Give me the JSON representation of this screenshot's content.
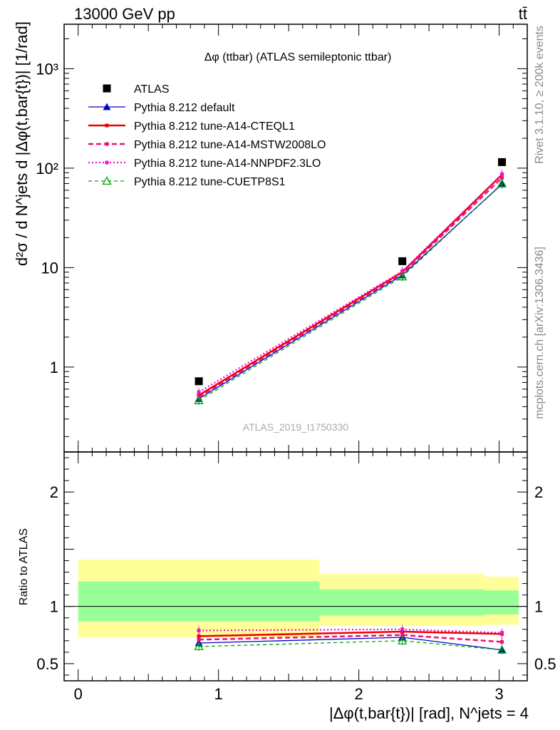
{
  "header": {
    "left": "13000 GeV pp",
    "right": "tt̄"
  },
  "side_labels": {
    "rivet": "Rivet 3.1.10, ≥ 200k events",
    "mcplots": "mcplots.cern.ch [arXiv:1306.3436]"
  },
  "chart_data": [
    {
      "type": "line",
      "title": "Δφ (ttbar) (ATLAS semileptonic ttbar)",
      "reference": "ATLAS_2019_I1750330",
      "ylabel": "d²σ / d N^jets d |Δφ(t,bar{t})| [1/rad]",
      "yscale": "log",
      "ylim": [
        0.14,
        2800
      ],
      "xlim": [
        -0.1,
        3.2
      ],
      "y_ticks": [
        {
          "value": 1,
          "label": "1"
        },
        {
          "value": 10,
          "label": "10"
        },
        {
          "value": 100,
          "label": "10²"
        },
        {
          "value": 1000,
          "label": "10³"
        }
      ],
      "x": [
        0.86,
        2.31,
        3.02
      ],
      "series": [
        {
          "name": "ATLAS",
          "color": "#000000",
          "style": "marker",
          "values": [
            0.72,
            11.6,
            115
          ]
        },
        {
          "name": "Pythia 8.212 default",
          "color": "#0000cc",
          "style": "solid-thin-tri",
          "values": [
            0.48,
            8.4,
            69
          ]
        },
        {
          "name": "Pythia 8.212 tune-A14-CTEQL1",
          "color": "#ee0000",
          "style": "solid-thick",
          "values": [
            0.52,
            9.0,
            86
          ]
        },
        {
          "name": "Pythia 8.212 tune-A14-MSTW2008LO",
          "color": "#ee1177",
          "style": "dashed-thick",
          "values": [
            0.5,
            8.7,
            80
          ]
        },
        {
          "name": "Pythia 8.212 tune-A14-NNPDF2.3LO",
          "color": "#ee11cc",
          "style": "dotted",
          "values": [
            0.56,
            9.2,
            87
          ]
        },
        {
          "name": "Pythia 8.212 tune-CUETP8S1",
          "color": "#00aa00",
          "style": "dashed-thin-opentri",
          "values": [
            0.46,
            8.1,
            70
          ]
        }
      ]
    },
    {
      "type": "line",
      "title": "",
      "ylabel": "Ratio to ATLAS",
      "xlabel": "|Δφ(t,bar{t})| [rad], N^jets = 4",
      "ylim": [
        0.35,
        2.35
      ],
      "xlim": [
        -0.1,
        3.2
      ],
      "x_ticks": [
        {
          "value": 0,
          "label": "0"
        },
        {
          "value": 1,
          "label": "1"
        },
        {
          "value": 2,
          "label": "2"
        },
        {
          "value": 3,
          "label": "3"
        }
      ],
      "y_ticks": [
        {
          "value": 0.5,
          "label": "0.5"
        },
        {
          "value": 1,
          "label": "1"
        },
        {
          "value": 2,
          "label": "2"
        }
      ],
      "bin_edges": [
        0,
        1.72,
        2.89,
        3.14
      ],
      "band_outer": [
        [
          0.73,
          1.41
        ],
        [
          0.83,
          1.29
        ],
        [
          0.84,
          1.26
        ]
      ],
      "band_inner": [
        [
          0.87,
          1.22
        ],
        [
          0.92,
          1.15
        ],
        [
          0.93,
          1.14
        ]
      ],
      "x": [
        0.86,
        2.31,
        3.02
      ],
      "series": [
        {
          "name": "Pythia 8.212 default",
          "color": "#0000cc",
          "style": "solid-thin-tri",
          "values": [
            0.68,
            0.73,
            0.62
          ]
        },
        {
          "name": "Pythia 8.212 tune-A14-CTEQL1",
          "color": "#ee0000",
          "style": "solid-thick",
          "values": [
            0.74,
            0.78,
            0.76
          ]
        },
        {
          "name": "Pythia 8.212 tune-A14-MSTW2008LO",
          "color": "#ee1177",
          "style": "dashed-thick",
          "values": [
            0.71,
            0.75,
            0.69
          ]
        },
        {
          "name": "Pythia 8.212 tune-A14-NNPDF2.3LO",
          "color": "#ee11cc",
          "style": "dotted",
          "values": [
            0.79,
            0.8,
            0.77
          ]
        },
        {
          "name": "Pythia 8.212 tune-CUETP8S1",
          "color": "#00aa00",
          "style": "dashed-thin-opentri",
          "values": [
            0.65,
            0.7,
            0.62
          ]
        }
      ]
    }
  ]
}
